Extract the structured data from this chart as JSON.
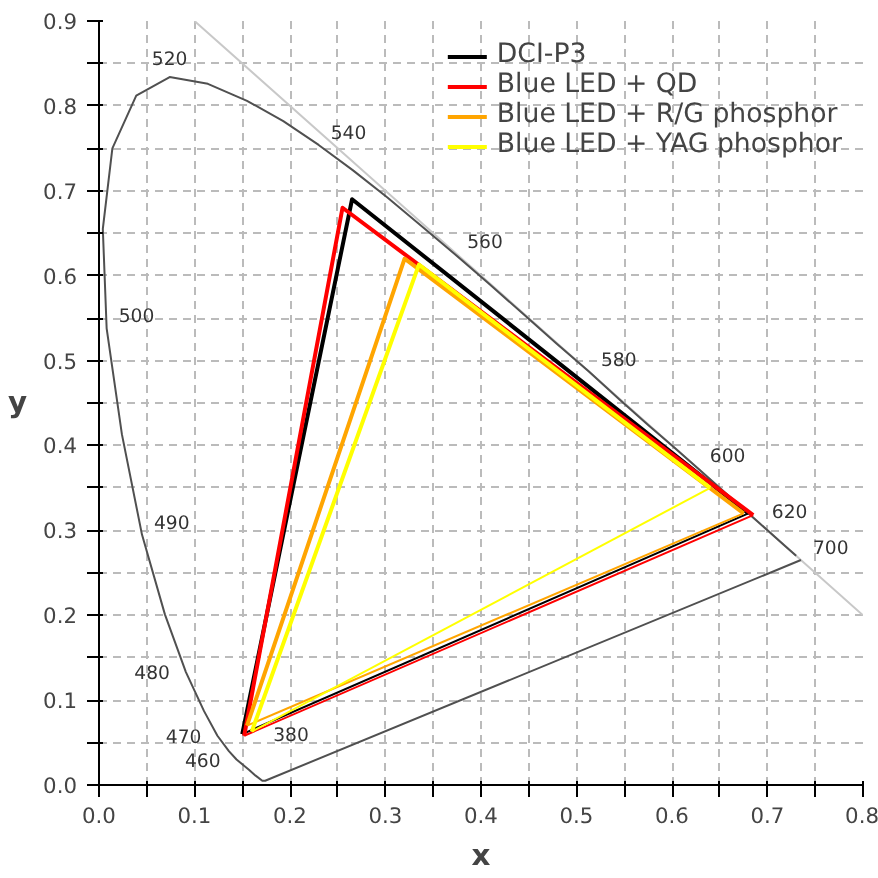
{
  "chart_data": {
    "type": "line",
    "xlabel": "x",
    "ylabel": "y",
    "xlim": [
      0,
      0.8
    ],
    "ylim": [
      0,
      0.9
    ],
    "xticks": [
      {
        "value": 0,
        "label": "0.0"
      },
      {
        "value": 0.05,
        "label": null
      },
      0.1,
      {
        "value": 0.15,
        "label": null
      },
      0.2,
      {
        "value": 0.25,
        "label": null
      },
      0.3,
      {
        "value": 0.35,
        "label": null
      },
      0.4,
      {
        "value": 0.45,
        "label": null
      },
      0.5,
      {
        "value": 0.55,
        "label": null
      },
      0.6,
      {
        "value": 0.65,
        "label": null
      },
      0.7,
      {
        "value": 0.75,
        "label": null
      },
      0.8
    ],
    "yticks": [
      {
        "value": 0,
        "label": "0.0"
      },
      {
        "value": 0.05,
        "label": null
      },
      0.1,
      {
        "value": 0.15,
        "label": null
      },
      0.2,
      {
        "value": 0.25,
        "label": null
      },
      0.3,
      {
        "value": 0.35,
        "label": null
      },
      0.4,
      {
        "value": 0.45,
        "label": null
      },
      0.5,
      {
        "value": 0.55,
        "label": null
      },
      0.6,
      {
        "value": 0.65,
        "label": null
      },
      0.7,
      {
        "value": 0.75,
        "label": null
      },
      0.8,
      {
        "value": 0.85,
        "label": null
      },
      0.9
    ],
    "grid": true,
    "legend": "top right",
    "marker": "none",
    "line_style": "solid",
    "series": [
      {
        "color": "#c8c8c8",
        "x": [
          0.1,
          0.8
        ],
        "values": [
          0.9,
          0.2
        ]
      },
      {
        "color": "#505050",
        "x": [
          0.735,
          0.174,
          0.171,
          0.164,
          0.157,
          0.144,
          0.136,
          0.124,
          0.11,
          0.091,
          0.069,
          0.045,
          0.024,
          0.008,
          0.004,
          0.014,
          0.039,
          0.074,
          0.114,
          0.155,
          0.193,
          0.23,
          0.266,
          0.302,
          0.337,
          0.373,
          0.409,
          0.444,
          0.479,
          0.513,
          0.545,
          0.575,
          0.603,
          0.627,
          0.666,
          0.692,
          0.719,
          0.73
        ],
        "values": [
          0.265,
          0.005,
          0.005,
          0.011,
          0.018,
          0.03,
          0.04,
          0.058,
          0.087,
          0.133,
          0.201,
          0.295,
          0.413,
          0.538,
          0.655,
          0.75,
          0.812,
          0.834,
          0.826,
          0.806,
          0.782,
          0.754,
          0.724,
          0.692,
          0.659,
          0.625,
          0.59,
          0.555,
          0.52,
          0.487,
          0.454,
          0.424,
          0.397,
          0.373,
          0.334,
          0.308,
          0.281,
          0.27
        ]
      },
      {
        "name": "DCI-P3",
        "color": "#000000",
        "x": [
          0.15,
          0.265,
          0.68
        ],
        "values": [
          0.06,
          0.69,
          0.32
        ]
      },
      {
        "color": "#000000",
        "x": [
          0.15,
          0.68
        ],
        "values": [
          0.06,
          0.32
        ]
      },
      {
        "name": "Blue LED + QD",
        "color": "#ff0000",
        "x": [
          0.152,
          0.255,
          0.685
        ],
        "values": [
          0.058,
          0.68,
          0.318
        ]
      },
      {
        "color": "#ff0000",
        "x": [
          0.152,
          0.685
        ],
        "values": [
          0.058,
          0.318
        ]
      },
      {
        "name": "Blue LED + R/G phosphor",
        "color": "#ffa500",
        "x": [
          0.155,
          0.32,
          0.675
        ],
        "values": [
          0.07,
          0.62,
          0.32
        ]
      },
      {
        "color": "#ffa500",
        "x": [
          0.155,
          0.675
        ],
        "values": [
          0.07,
          0.32
        ]
      },
      {
        "name": "Blue LED + YAG phosphor",
        "color": "#ffff00",
        "x": [
          0.16,
          0.335,
          0.64
        ],
        "values": [
          0.063,
          0.613,
          0.35
        ]
      },
      {
        "color": "#ffff00",
        "x": [
          0.16,
          0.64
        ],
        "values": [
          0.063,
          0.35
        ]
      }
    ],
    "annotations": [
      {
        "text": "520",
        "x": 0.074,
        "y": 0.834
      },
      {
        "text": "540",
        "x": 0.23,
        "y": 0.754
      },
      {
        "text": "560",
        "x": 0.373,
        "y": 0.625
      },
      {
        "text": "580",
        "x": 0.513,
        "y": 0.487
      },
      {
        "text": "600",
        "x": 0.627,
        "y": 0.373
      },
      {
        "text": "620",
        "x": 0.692,
        "y": 0.308
      },
      {
        "text": "700",
        "x": 0.735,
        "y": 0.265
      },
      {
        "text": "500",
        "x": 0.008,
        "y": 0.538
      },
      {
        "text": "490",
        "x": 0.045,
        "y": 0.295
      },
      {
        "text": "480",
        "x": 0.091,
        "y": 0.133
      },
      {
        "text": "470",
        "x": 0.124,
        "y": 0.058
      },
      {
        "text": "460",
        "x": 0.144,
        "y": 0.03
      },
      {
        "text": "380",
        "x": 0.174,
        "y": 0.005
      }
    ]
  }
}
